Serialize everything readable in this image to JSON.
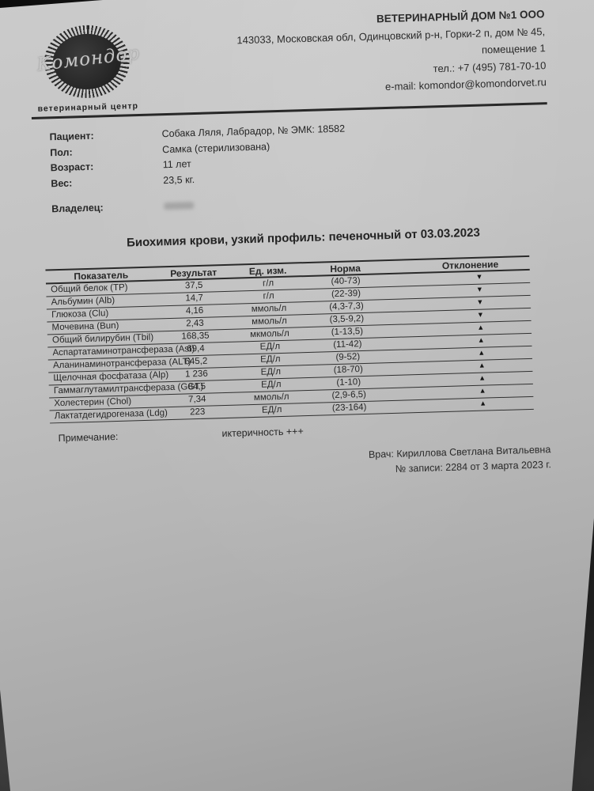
{
  "clinic": {
    "name": "ВЕТЕРИНАРНЫЙ ДОМ №1 ООО",
    "address": "143033, Московская обл, Одинцовский р-н, Горки-2 п, дом № 45, помещение 1",
    "phone": "тел.: +7 (495) 781-70-10",
    "email": "e-mail: komondor@komondorvet.ru",
    "logo_text": "Комондор",
    "logo_subtitle": "ветеринарный центр"
  },
  "patient": {
    "rows": [
      {
        "label": "Пациент:",
        "value": "Собака Ляля, Лабрадор, № ЭМК: 18582"
      },
      {
        "label": "Пол:",
        "value": "Самка (стерилизована)"
      },
      {
        "label": "Возраст:",
        "value": "11 лет"
      },
      {
        "label": "Вес:",
        "value": "23,5 кг."
      }
    ],
    "owner_label": "Владелец:"
  },
  "report": {
    "title": "Биохимия крови, узкий профиль: печеночный от 03.03.2023",
    "table": {
      "headers": [
        "Показатель",
        "Результат",
        "Ед. изм.",
        "Норма",
        "Отклонение"
      ],
      "rows": [
        {
          "name": "Общий белок (TP)",
          "result": "37,5",
          "unit": "г/л",
          "norm": "(40-73)",
          "deviation": "▼"
        },
        {
          "name": "Альбумин (Alb)",
          "result": "14,7",
          "unit": "г/л",
          "norm": "(22-39)",
          "deviation": "▼"
        },
        {
          "name": "Глюкоза (Clu)",
          "result": "4,16",
          "unit": "ммоль/л",
          "norm": "(4,3-7,3)",
          "deviation": "▼"
        },
        {
          "name": "Мочевина (Bun)",
          "result": "2,43",
          "unit": "ммоль/л",
          "norm": "(3,5-9,2)",
          "deviation": "▼"
        },
        {
          "name": "Общий билирубин (Tbil)",
          "result": "168,35",
          "unit": "мкмоль/л",
          "norm": "(1-13,5)",
          "deviation": "▲"
        },
        {
          "name": "Аспартатаминотрансфераза (Ast)",
          "result": "69,4",
          "unit": "ЕД/л",
          "norm": "(11-42)",
          "deviation": "▲"
        },
        {
          "name": "Аланинаминотрансфераза (ALT)",
          "result": "645,2",
          "unit": "ЕД/л",
          "norm": "(9-52)",
          "deviation": "▲"
        },
        {
          "name": "Щелочная фосфатаза (Alp)",
          "result": "1 236",
          "unit": "ЕД/л",
          "norm": "(18-70)",
          "deviation": "▲"
        },
        {
          "name": "Гаммаглутамилтрансфераза (GGT)",
          "result": "84,5",
          "unit": "ЕД/л",
          "norm": "(1-10)",
          "deviation": "▲"
        },
        {
          "name": "Холестерин (Chol)",
          "result": "7,34",
          "unit": "ммоль/л",
          "norm": "(2,9-6,5)",
          "deviation": "▲"
        },
        {
          "name": "Лактатдегидрогеназа (Ldg)",
          "result": "223",
          "unit": "ЕД/л",
          "norm": "(23-164)",
          "deviation": "▲"
        }
      ]
    },
    "note_label": "Примечание:",
    "note_value": "иктеричность +++",
    "doctor": "Врач: Кириллова Светлана Витальевна",
    "record": "№ записи: 2284 от 3 марта 2023 г."
  }
}
